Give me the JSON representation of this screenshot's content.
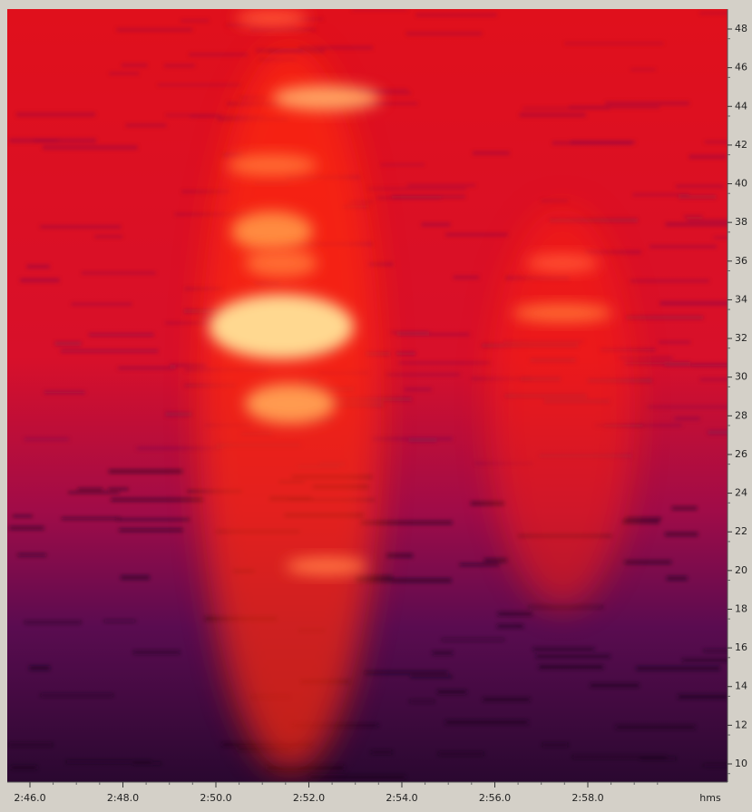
{
  "y_axis": {
    "labels": [
      "48",
      "46",
      "44",
      "42",
      "40",
      "38",
      "36",
      "34",
      "32",
      "30",
      "28",
      "26",
      "24",
      "22",
      "20",
      "18",
      "16",
      "14",
      "12",
      "10"
    ]
  },
  "x_axis": {
    "labels": [
      "2:46.0",
      "2:48.0",
      "2:50.0",
      "2:52.0",
      "2:54.0",
      "2:56.0",
      "2:58.0"
    ],
    "unit": "hms"
  }
}
